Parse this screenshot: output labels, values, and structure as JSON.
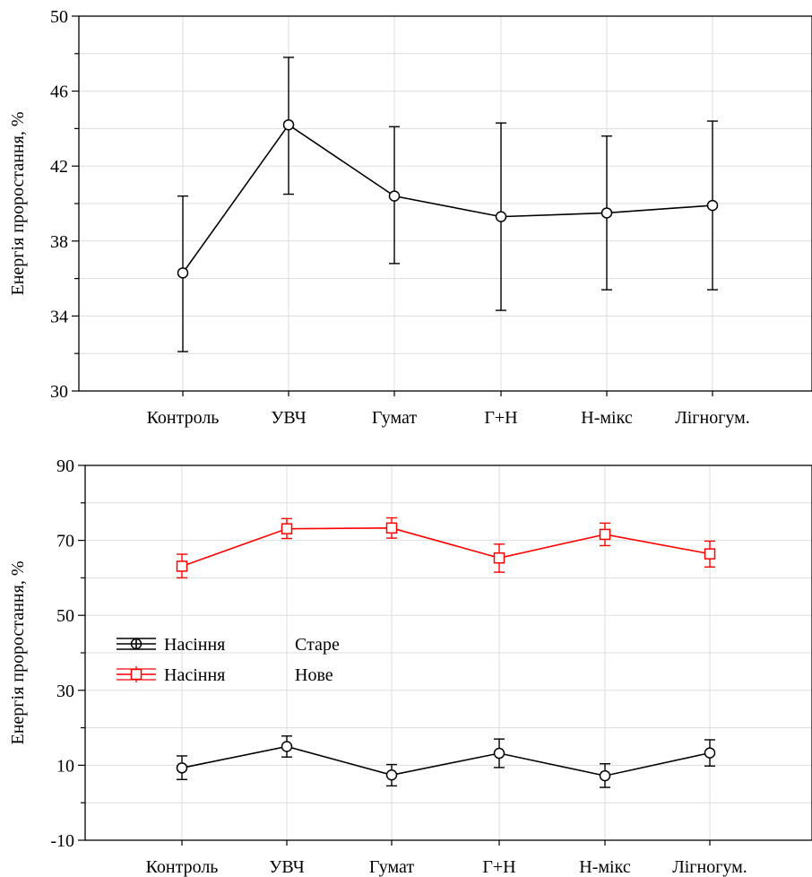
{
  "chart_data": [
    {
      "type": "line",
      "title": "",
      "xlabel": "",
      "ylabel": "Енергія проростання, %",
      "ylim": [
        30,
        50
      ],
      "yticks": [
        "30",
        "34",
        "38",
        "42",
        "46",
        "50"
      ],
      "grid": true,
      "categories": [
        "Контроль",
        "УВЧ",
        "Гумат",
        "Г+Н",
        "Н-мікс",
        "Лігногум."
      ],
      "series": [
        {
          "color": "#000000",
          "marker": "circle",
          "values": [
            36.3,
            44.2,
            40.4,
            39.3,
            39.5,
            39.9
          ],
          "err_low": [
            32.1,
            40.5,
            36.8,
            34.3,
            35.4,
            35.4
          ],
          "err_high": [
            40.4,
            47.8,
            44.1,
            44.3,
            43.6,
            44.4
          ]
        }
      ]
    },
    {
      "type": "line",
      "title": "",
      "xlabel": "",
      "ylabel": "Енергія проростання, %",
      "ylim": [
        -10,
        90
      ],
      "yticks": [
        "-10",
        "10",
        "30",
        "50",
        "70",
        "90"
      ],
      "grid": true,
      "categories": [
        "Контроль",
        "УВЧ",
        "Гумат",
        "Г+Н",
        "Н-мікс",
        "Лігногум."
      ],
      "legend_position": "left",
      "series": [
        {
          "name": "Насіння",
          "level": "Старе",
          "color": "#000000",
          "marker": "circle",
          "values": [
            9.3,
            15.0,
            7.4,
            13.2,
            7.2,
            13.3
          ],
          "err_low": [
            6.2,
            12.2,
            4.5,
            9.4,
            4.1,
            9.8
          ],
          "err_high": [
            12.5,
            17.8,
            10.2,
            17.0,
            10.4,
            16.8
          ]
        },
        {
          "name": "Насіння",
          "level": "Нове",
          "color": "#ff0000",
          "marker": "square",
          "values": [
            63.1,
            73.1,
            73.3,
            65.3,
            71.6,
            66.4
          ],
          "err_low": [
            60.0,
            70.5,
            70.6,
            61.5,
            68.6,
            62.9
          ],
          "err_high": [
            66.3,
            75.8,
            76.0,
            69.0,
            74.6,
            69.8
          ]
        }
      ]
    }
  ]
}
